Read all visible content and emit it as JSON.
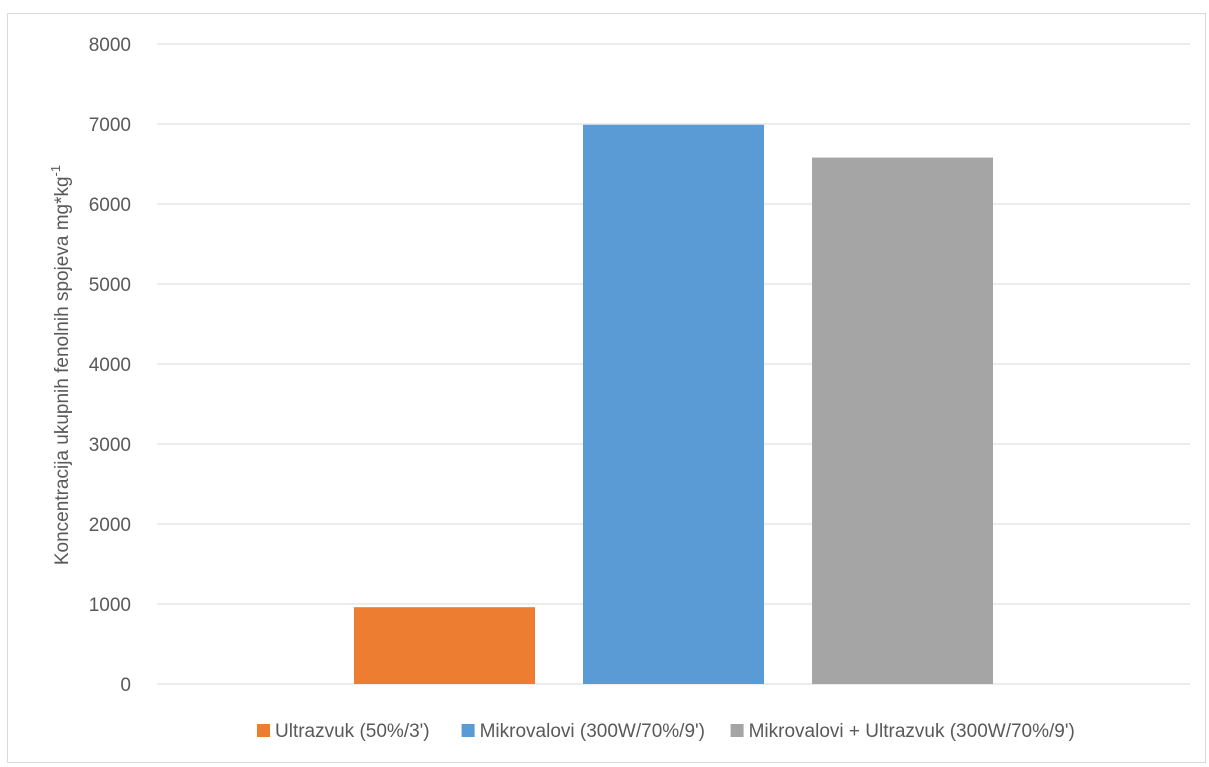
{
  "chart_data": {
    "type": "bar",
    "ylabel": "Koncentracija ukupnih fenolnih spojeva mg*kg",
    "ylabel_superscript": "-1",
    "ylim": [
      0,
      8000
    ],
    "yticks": [
      0,
      1000,
      2000,
      3000,
      4000,
      5000,
      6000,
      7000,
      8000
    ],
    "grid": true,
    "legend_position": "bottom",
    "series": [
      {
        "name": "Ultrazvuk (50%/3')",
        "value": 960,
        "color": "#ed7d31"
      },
      {
        "name": "Mikrovalovi (300W/70%/9')",
        "value": 6990,
        "color": "#5b9bd5"
      },
      {
        "name": "Mikrovalovi + Ultrazvuk (300W/70%/9')",
        "value": 6580,
        "color": "#a5a5a5"
      }
    ]
  }
}
